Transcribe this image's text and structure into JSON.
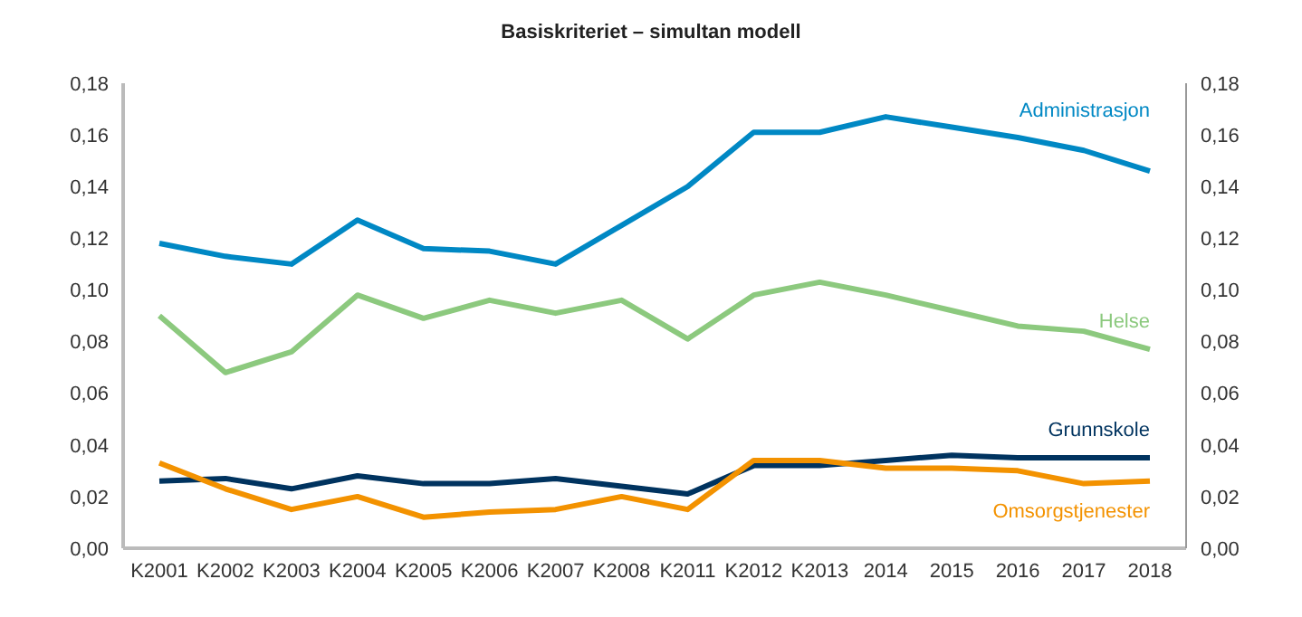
{
  "chart_data": {
    "type": "line",
    "title": "Basiskriteriet – simultan modell",
    "categories": [
      "K2001",
      "K2002",
      "K2003",
      "K2004",
      "K2005",
      "K2006",
      "K2007",
      "K2008",
      "K2011",
      "K2012",
      "K2013",
      "2014",
      "2015",
      "2016",
      "2017",
      "2018"
    ],
    "series": [
      {
        "name": "Administrasjon",
        "color": "#0088c4",
        "values": [
          0.118,
          0.113,
          0.11,
          0.127,
          0.116,
          0.115,
          0.11,
          0.125,
          0.14,
          0.161,
          0.161,
          0.167,
          0.163,
          0.159,
          0.154,
          0.146
        ]
      },
      {
        "name": "Helse",
        "color": "#8cc97e",
        "values": [
          0.09,
          0.068,
          0.076,
          0.098,
          0.089,
          0.096,
          0.091,
          0.096,
          0.081,
          0.098,
          0.103,
          0.098,
          0.092,
          0.086,
          0.084,
          0.077
        ]
      },
      {
        "name": "Grunnskole",
        "color": "#00335f",
        "values": [
          0.026,
          0.027,
          0.023,
          0.028,
          0.025,
          0.025,
          0.027,
          0.024,
          0.021,
          0.032,
          0.032,
          0.034,
          0.036,
          0.035,
          0.035,
          0.035
        ]
      },
      {
        "name": "Omsorgstjenester",
        "color": "#f39200",
        "values": [
          0.033,
          0.023,
          0.015,
          0.02,
          0.012,
          0.014,
          0.015,
          0.02,
          0.015,
          0.034,
          0.034,
          0.031,
          0.031,
          0.03,
          0.025,
          0.026
        ]
      }
    ],
    "ylim": [
      0,
      0.18
    ],
    "yticks": [
      {
        "value": 0,
        "label": "0,00"
      },
      {
        "value": 0.02,
        "label": "0,02"
      },
      {
        "value": 0.04,
        "label": "0,04"
      },
      {
        "value": 0.06,
        "label": "0,06"
      },
      {
        "value": 0.08,
        "label": "0,08"
      },
      {
        "value": 0.1,
        "label": "0,10"
      },
      {
        "value": 0.12,
        "label": "0,12"
      },
      {
        "value": 0.14,
        "label": "0,14"
      },
      {
        "value": 0.16,
        "label": "0,16"
      },
      {
        "value": 0.18,
        "label": "0,18"
      }
    ],
    "y2lim": [
      0,
      0.18
    ],
    "y2ticks": [
      {
        "value": 0,
        "label": "0,00"
      },
      {
        "value": 0.02,
        "label": "0,02"
      },
      {
        "value": 0.04,
        "label": "0,04"
      },
      {
        "value": 0.06,
        "label": "0,06"
      },
      {
        "value": 0.08,
        "label": "0,08"
      },
      {
        "value": 0.1,
        "label": "0,10"
      },
      {
        "value": 0.12,
        "label": "0,12"
      },
      {
        "value": 0.14,
        "label": "0,14"
      },
      {
        "value": 0.16,
        "label": "0,16"
      },
      {
        "value": 0.18,
        "label": "0,18"
      }
    ],
    "grid": false,
    "legend": false,
    "marker": "none",
    "line_style": "solid"
  }
}
